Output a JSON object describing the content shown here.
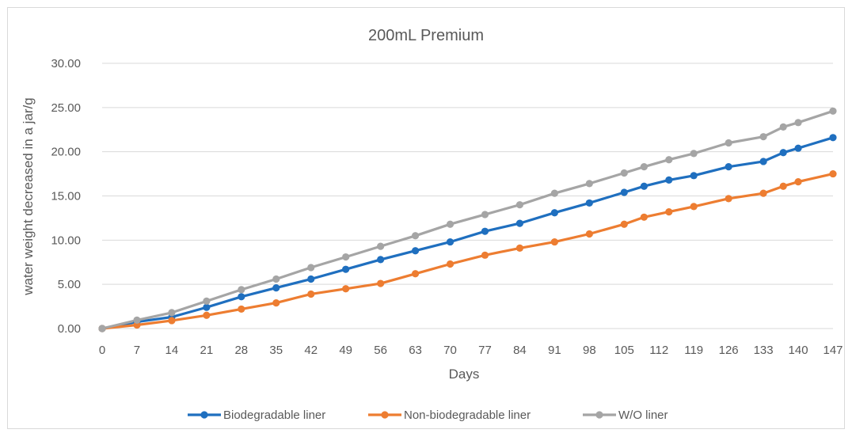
{
  "chart_data": {
    "type": "line",
    "title": "200mL Premium",
    "xlabel": "Days",
    "ylabel": "water weight decreased in a jar/g",
    "categories": [
      "0",
      "7",
      "14",
      "21",
      "28",
      "35",
      "42",
      "49",
      "56",
      "63",
      "70",
      "77",
      "84",
      "91",
      "98",
      "105",
      "112",
      "119",
      "126",
      "133",
      "140",
      "147"
    ],
    "x": [
      0,
      7,
      14,
      21,
      28,
      35,
      42,
      49,
      56,
      63,
      70,
      77,
      84,
      91,
      98,
      105,
      112,
      119,
      126,
      133,
      140,
      147
    ],
    "series": [
      {
        "name": "Biodegradable liner",
        "color": "#1f6fbf",
        "x": [
          0,
          7,
          14,
          21,
          28,
          35,
          42,
          49,
          56,
          63,
          70,
          77,
          84,
          91,
          98,
          105,
          109,
          114,
          119,
          126,
          133,
          137,
          140,
          147
        ],
        "values": [
          0,
          0.75,
          1.3,
          2.4,
          3.6,
          4.6,
          5.6,
          6.7,
          7.8,
          8.8,
          9.8,
          11.0,
          11.9,
          13.1,
          14.2,
          15.4,
          16.1,
          16.8,
          17.3,
          18.3,
          18.9,
          19.9,
          20.4,
          21.6
        ]
      },
      {
        "name": "Non-biodegradable liner",
        "color": "#ed7d31",
        "x": [
          0,
          7,
          14,
          21,
          28,
          35,
          42,
          49,
          56,
          63,
          70,
          77,
          84,
          91,
          98,
          105,
          109,
          114,
          119,
          126,
          133,
          137,
          140,
          147
        ],
        "values": [
          0,
          0.4,
          0.9,
          1.5,
          2.2,
          2.9,
          3.9,
          4.5,
          5.1,
          6.2,
          7.3,
          8.3,
          9.1,
          9.8,
          10.7,
          11.8,
          12.6,
          13.2,
          13.8,
          14.7,
          15.3,
          16.1,
          16.6,
          17.5
        ]
      },
      {
        "name": "W/O liner",
        "color": "#a5a5a5",
        "x": [
          0,
          7,
          14,
          21,
          28,
          35,
          42,
          49,
          56,
          63,
          70,
          77,
          84,
          91,
          98,
          105,
          109,
          114,
          119,
          126,
          133,
          137,
          140,
          147
        ],
        "values": [
          0,
          0.95,
          1.8,
          3.1,
          4.4,
          5.6,
          6.9,
          8.1,
          9.3,
          10.5,
          11.8,
          12.9,
          14.0,
          15.3,
          16.4,
          17.6,
          18.3,
          19.1,
          19.8,
          21.0,
          21.7,
          22.8,
          23.3,
          24.6
        ]
      }
    ],
    "y_ticks": [
      "0.00",
      "5.00",
      "10.00",
      "15.00",
      "20.00",
      "25.00",
      "30.00"
    ],
    "ylim": [
      0,
      30
    ],
    "xlim": [
      0,
      147
    ],
    "grid": true,
    "legend": "bottom"
  }
}
